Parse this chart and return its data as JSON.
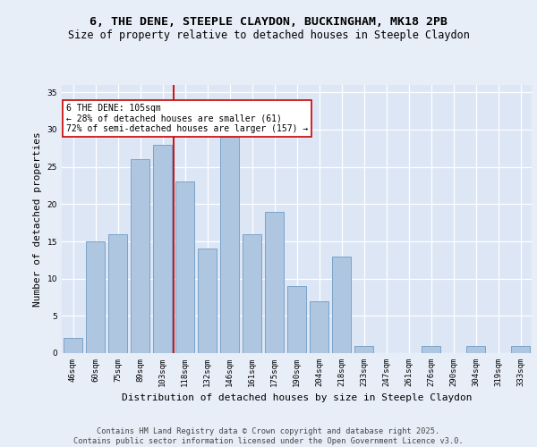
{
  "title1": "6, THE DENE, STEEPLE CLAYDON, BUCKINGHAM, MK18 2PB",
  "title2": "Size of property relative to detached houses in Steeple Claydon",
  "xlabel": "Distribution of detached houses by size in Steeple Claydon",
  "ylabel": "Number of detached properties",
  "categories": [
    "46sqm",
    "60sqm",
    "75sqm",
    "89sqm",
    "103sqm",
    "118sqm",
    "132sqm",
    "146sqm",
    "161sqm",
    "175sqm",
    "190sqm",
    "204sqm",
    "218sqm",
    "233sqm",
    "247sqm",
    "261sqm",
    "276sqm",
    "290sqm",
    "304sqm",
    "319sqm",
    "333sqm"
  ],
  "values": [
    2,
    15,
    16,
    26,
    28,
    23,
    14,
    29,
    16,
    19,
    9,
    7,
    13,
    1,
    0,
    0,
    1,
    0,
    1,
    0,
    1
  ],
  "bar_color": "#aec6e0",
  "bar_edge_color": "#7ba3c8",
  "background_color": "#dce6f5",
  "plot_bg_color": "#dce6f5",
  "fig_bg_color": "#e8eef8",
  "grid_color": "#ffffff",
  "vline_color": "#cc0000",
  "vline_x": 4.5,
  "annotation_text": "6 THE DENE: 105sqm\n← 28% of detached houses are smaller (61)\n72% of semi-detached houses are larger (157) →",
  "annotation_box_facecolor": "#ffffff",
  "annotation_box_edgecolor": "#cc0000",
  "ylim": [
    0,
    36
  ],
  "yticks": [
    0,
    5,
    10,
    15,
    20,
    25,
    30,
    35
  ],
  "footer": "Contains HM Land Registry data © Crown copyright and database right 2025.\nContains public sector information licensed under the Open Government Licence v3.0.",
  "title_fontsize": 9.5,
  "subtitle_fontsize": 8.5,
  "ylabel_fontsize": 8,
  "xlabel_fontsize": 8,
  "tick_fontsize": 6.5,
  "annot_fontsize": 7,
  "footer_fontsize": 6.2
}
